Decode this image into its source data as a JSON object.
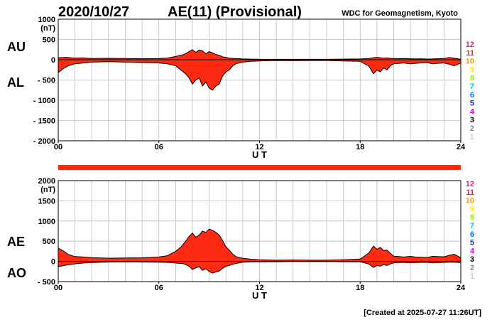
{
  "header": {
    "date": "2020/10/27",
    "title": "AE(11) (Provisional)",
    "source": "WDC for Geomagnetism, Kyoto"
  },
  "footer": {
    "created": "[Created at 2025-07-27 11:26UT]"
  },
  "station_legend": {
    "numbers": [
      "12",
      "11",
      "10",
      "9",
      "8",
      "7",
      "6",
      "5",
      "4",
      "3",
      "2",
      "1"
    ],
    "colors": [
      "#e8207a",
      "#ff2020",
      "#ff9900",
      "#ffe800",
      "#99ee00",
      "#00c8c8",
      "#0077ff",
      "#2222bb",
      "#cc00cc",
      "#000000",
      "#888888",
      "#cccccc"
    ]
  },
  "colors": {
    "fill": "#ff2a12",
    "line": "#000000",
    "grid": "#bbbbbb",
    "status_bar": "#ff2a12"
  },
  "chart_data": [
    {
      "type": "area",
      "id": "au-al",
      "left_labels": [
        "AU",
        "AL"
      ],
      "ylim": [
        -2000,
        1000
      ],
      "yticks": [
        1000,
        500,
        0,
        -500,
        -1000,
        -1500,
        -2000
      ],
      "ytick_labels": [
        "1000",
        "500",
        "0",
        "- 500",
        "- 1000",
        "- 1500",
        "- 2000"
      ],
      "unit": "(nT)",
      "xlim": [
        0,
        24
      ],
      "xticks": [
        0,
        6,
        12,
        18,
        24
      ],
      "xtick_labels": [
        "00",
        "06",
        "12",
        "18",
        "24"
      ],
      "xlabel": "U T",
      "grid": true,
      "series": [
        {
          "x": [
            0,
            0.5,
            1,
            1.5,
            2,
            3,
            4,
            5,
            6,
            6.5,
            7,
            7.5,
            7.8,
            8,
            8.2,
            8.4,
            8.6,
            8.8,
            9,
            9.2,
            9.4,
            9.6,
            9.8,
            10,
            10.2,
            10.5,
            11,
            11.5,
            12,
            13,
            14,
            15,
            16,
            17,
            18,
            18.5,
            18.8,
            19,
            19.2,
            19.4,
            19.6,
            19.8,
            20,
            20.3,
            20.6,
            21,
            21.3,
            21.6,
            22,
            22.3,
            22.6,
            23,
            23.3,
            23.6,
            24
          ],
          "values": [
            50,
            60,
            40,
            45,
            30,
            35,
            30,
            25,
            30,
            40,
            80,
            130,
            200,
            250,
            180,
            240,
            220,
            150,
            200,
            170,
            130,
            110,
            70,
            60,
            40,
            30,
            20,
            15,
            10,
            10,
            10,
            10,
            10,
            15,
            20,
            30,
            50,
            60,
            50,
            40,
            45,
            35,
            30,
            25,
            30,
            25,
            20,
            25,
            15,
            20,
            25,
            30,
            55,
            40,
            10
          ]
        },
        {
          "x": [
            0,
            0.3,
            0.6,
            1,
            1.5,
            2,
            3,
            4,
            5,
            6,
            6.5,
            7,
            7.3,
            7.6,
            7.8,
            8,
            8.2,
            8.4,
            8.6,
            8.8,
            9,
            9.2,
            9.4,
            9.6,
            9.8,
            10,
            10.2,
            10.4,
            10.6,
            11,
            11.5,
            12,
            13,
            14,
            15,
            16,
            17,
            18,
            18.5,
            18.8,
            19,
            19.2,
            19.4,
            19.6,
            19.8,
            20,
            20.3,
            20.6,
            21,
            21.3,
            21.6,
            22,
            22.3,
            22.6,
            23,
            23.3,
            23.6,
            24
          ],
          "values": [
            -320,
            -220,
            -150,
            -100,
            -80,
            -60,
            -50,
            -60,
            -70,
            -80,
            -100,
            -150,
            -250,
            -350,
            -450,
            -600,
            -500,
            -450,
            -650,
            -550,
            -700,
            -750,
            -650,
            -600,
            -400,
            -300,
            -250,
            -150,
            -100,
            -60,
            -40,
            -30,
            -20,
            -25,
            -20,
            -20,
            -30,
            -40,
            -150,
            -350,
            -250,
            -300,
            -200,
            -250,
            -150,
            -100,
            -90,
            -80,
            -100,
            -90,
            -80,
            -70,
            -100,
            -90,
            -80,
            -110,
            -150,
            -80
          ]
        }
      ]
    },
    {
      "type": "area",
      "id": "ae-ao",
      "left_labels": [
        "AE",
        "AO"
      ],
      "ylim": [
        -500,
        2000
      ],
      "yticks": [
        2000,
        1500,
        1000,
        500,
        0,
        -500
      ],
      "ytick_labels": [
        "2000",
        "1500",
        "1000",
        "500",
        "0",
        "- 500"
      ],
      "unit": "(nT)",
      "xlim": [
        0,
        24
      ],
      "xticks": [
        0,
        6,
        12,
        18,
        24
      ],
      "xtick_labels": [
        "00",
        "06",
        "12",
        "18",
        "24"
      ],
      "xlabel": "U T",
      "grid": true,
      "series": [
        {
          "x": [
            0,
            0.3,
            0.6,
            1,
            1.5,
            2,
            3,
            4,
            5,
            6,
            6.5,
            7,
            7.3,
            7.6,
            7.8,
            8,
            8.2,
            8.4,
            8.6,
            8.8,
            9,
            9.2,
            9.4,
            9.6,
            9.8,
            10,
            10.2,
            10.4,
            10.6,
            11,
            11.5,
            12,
            13,
            14,
            15,
            16,
            17,
            18,
            18.5,
            18.8,
            19,
            19.2,
            19.4,
            19.6,
            19.8,
            20,
            20.3,
            20.6,
            21,
            21.3,
            21.6,
            22,
            22.3,
            22.6,
            23,
            23.3,
            23.6,
            24
          ],
          "values": [
            330,
            260,
            170,
            120,
            110,
            95,
            80,
            85,
            90,
            110,
            140,
            250,
            350,
            500,
            620,
            700,
            600,
            650,
            750,
            720,
            800,
            770,
            720,
            650,
            520,
            360,
            280,
            180,
            120,
            75,
            55,
            40,
            30,
            35,
            30,
            30,
            40,
            60,
            200,
            380,
            300,
            350,
            270,
            280,
            200,
            130,
            120,
            110,
            125,
            110,
            105,
            95,
            125,
            120,
            115,
            150,
            180,
            90
          ]
        },
        {
          "x": [
            0,
            0.5,
            1,
            1.5,
            2,
            3,
            4,
            5,
            6,
            6.5,
            7,
            7.5,
            7.8,
            8,
            8.2,
            8.4,
            8.6,
            8.8,
            9,
            9.2,
            9.4,
            9.6,
            9.8,
            10,
            10.2,
            10.5,
            11,
            11.5,
            12,
            13,
            14,
            15,
            16,
            17,
            18,
            18.5,
            18.8,
            19,
            19.2,
            19.4,
            19.6,
            19.8,
            20,
            20.3,
            20.6,
            21,
            21.3,
            21.6,
            22,
            22.3,
            22.6,
            23,
            23.3,
            23.6,
            24
          ],
          "values": [
            -130,
            -90,
            -60,
            -40,
            -30,
            -15,
            -10,
            -15,
            -20,
            -25,
            -40,
            -60,
            -120,
            -200,
            -160,
            -130,
            -220,
            -180,
            -250,
            -290,
            -260,
            -240,
            -170,
            -120,
            -100,
            -60,
            -20,
            -12,
            -10,
            -8,
            -5,
            -5,
            -5,
            -8,
            -10,
            -60,
            -150,
            -100,
            -120,
            -80,
            -100,
            -60,
            -35,
            -30,
            -25,
            -35,
            -30,
            -25,
            -25,
            -35,
            -30,
            -25,
            -20,
            -20,
            -30
          ]
        }
      ]
    }
  ]
}
